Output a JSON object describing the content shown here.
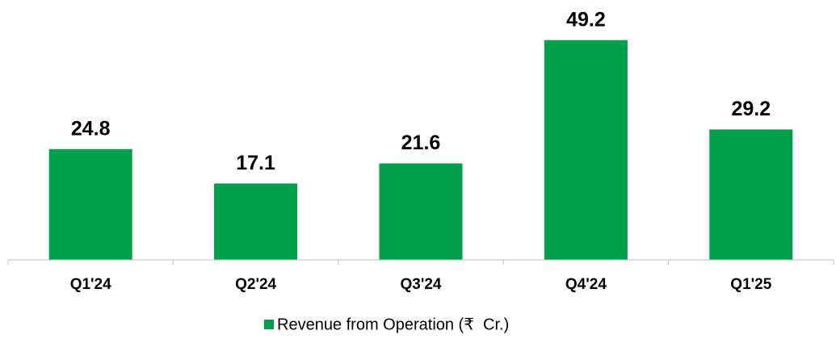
{
  "chart_data": {
    "type": "bar",
    "categories": [
      "Q1'24",
      "Q2'24",
      "Q3'24",
      "Q4'24",
      "Q1'25"
    ],
    "series": [
      {
        "name": "Revenue from Operation (₹  Cr.)",
        "color": "#00a04b",
        "values": [
          24.8,
          17.1,
          21.6,
          49.2,
          29.2
        ]
      }
    ],
    "ylim": [
      0,
      58
    ],
    "legend": "bottom"
  }
}
